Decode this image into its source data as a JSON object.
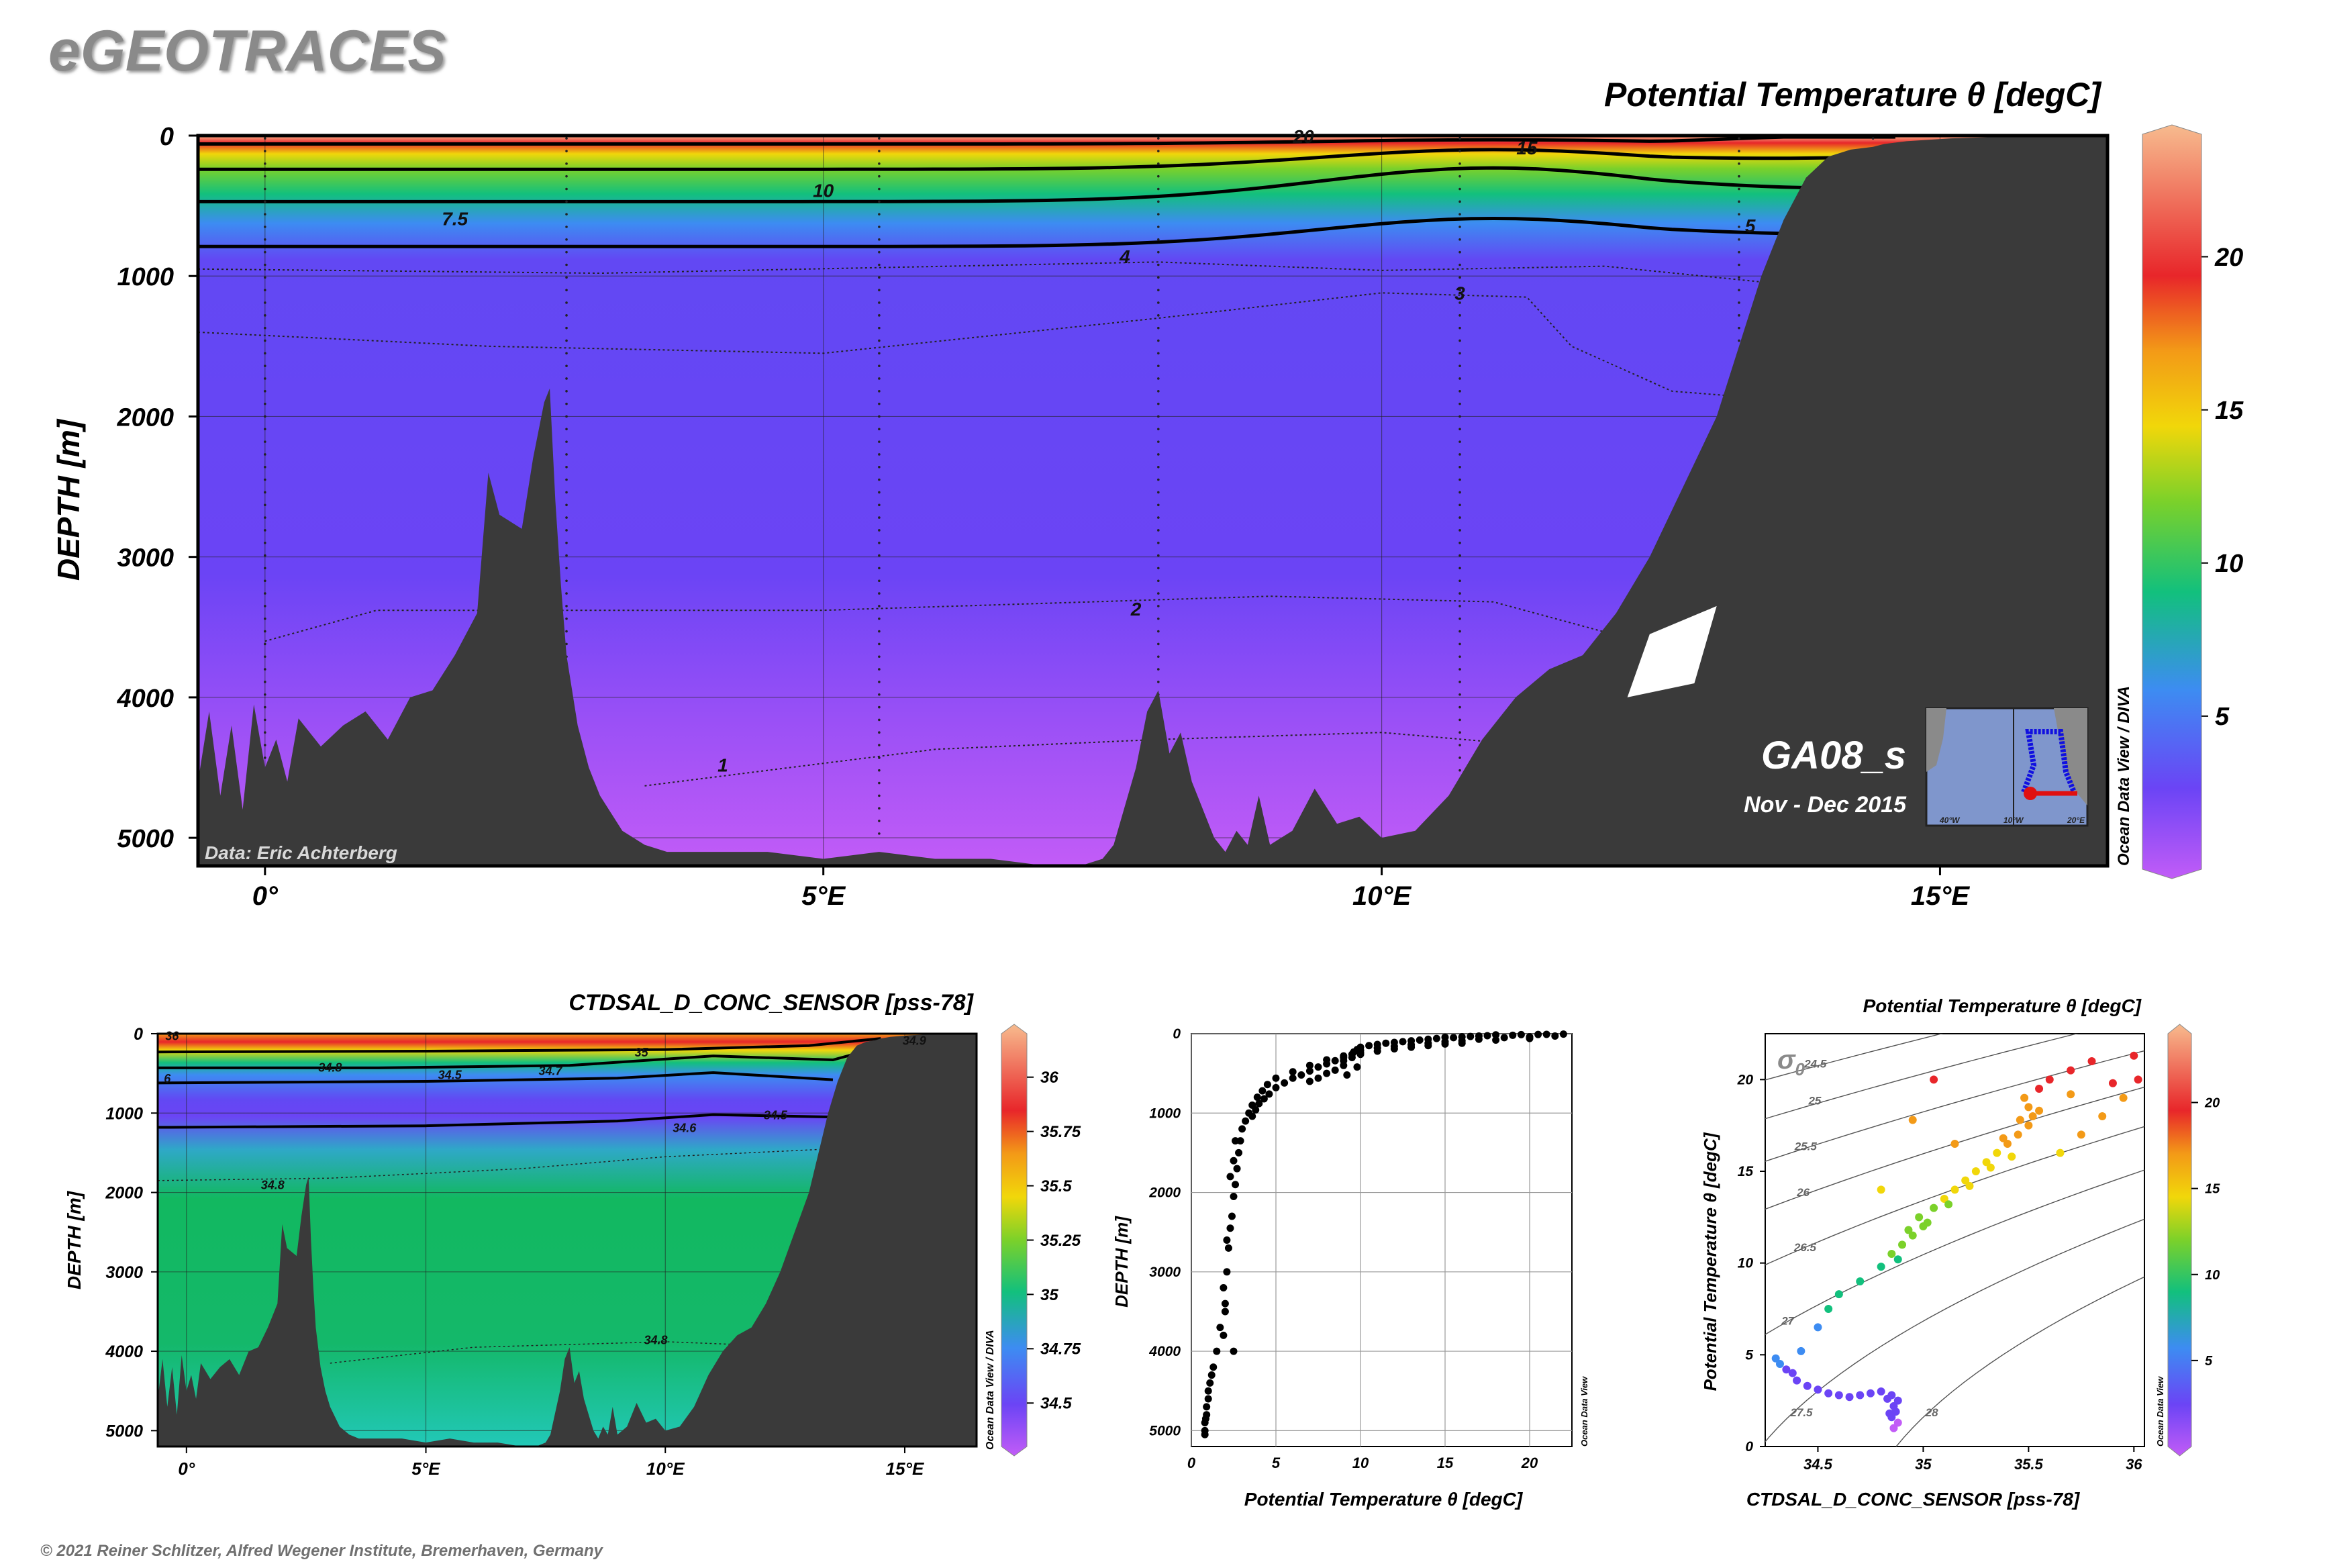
{
  "brand": "eGEOTRACES",
  "copyright": "© 2021 Reiner Schlitzer, Alfred Wegener Institute, Bremerhaven, Germany",
  "colors": {
    "seafloor": "#3a3a3a",
    "palette_temp": [
      "#c25cf7",
      "#6b44f5",
      "#3d8cf2",
      "#12c07d",
      "#7bd12a",
      "#f1d70a",
      "#f39a17",
      "#e8262a",
      "#f7bb8e"
    ],
    "palette_sal": [
      "#c25cf7",
      "#6b44f5",
      "#3d8cf2",
      "#12c07d",
      "#7bd12a",
      "#f1d70a",
      "#f39a17",
      "#e8262a",
      "#f7bb8e"
    ]
  },
  "main": {
    "title": "Potential Temperature θ [degC]",
    "ylabel": "DEPTH [m]",
    "credit": "Data: Eric Achterberg",
    "cruise": "GA08_s",
    "cruise_dates": "Nov - Dec 2015",
    "odv": "Ocean Data View / DIVA",
    "inset_labels": [
      "40°W",
      "10°W",
      "20°E"
    ]
  },
  "sal": {
    "title": "CTDSAL_D_CONC_SENSOR [pss-78]",
    "ylabel": "DEPTH [m]",
    "odv": "Ocean Data View / DIVA"
  },
  "profile": {
    "xlabel": "Potential Temperature θ [degC]",
    "ylabel": "DEPTH [m]",
    "odv": "Ocean Data View"
  },
  "ts": {
    "title": "Potential Temperature θ [degC]",
    "xlabel": "CTDSAL_D_CONC_SENSOR [pss-78]",
    "ylabel": "Potential Temperature θ [degC]",
    "sigma": "σ",
    "sigma_sub": "0",
    "odv": "Ocean Data View"
  },
  "chart_data": [
    {
      "id": "section-theta",
      "type": "heatmap",
      "title": "Potential Temperature θ [degC]",
      "ylabel": "DEPTH [m]",
      "xlim": [
        -0.6,
        16.5
      ],
      "ylim": [
        5200,
        0
      ],
      "xticks": [
        {
          "v": 0,
          "label": "0°"
        },
        {
          "v": 5,
          "label": "5°E"
        },
        {
          "v": 10,
          "label": "10°E"
        },
        {
          "v": 15,
          "label": "15°E"
        }
      ],
      "yticks": [
        0,
        1000,
        2000,
        3000,
        4000,
        5000
      ],
      "colorbar": {
        "min": 0,
        "max": 24,
        "ticks": [
          5,
          10,
          15,
          20
        ]
      },
      "contours": [
        {
          "level": "20",
          "at": [
            9.3,
            5
          ]
        },
        {
          "level": "15",
          "at": [
            11.3,
            85
          ]
        },
        {
          "level": "10",
          "at": [
            5.0,
            390
          ]
        },
        {
          "level": "7.5",
          "at": [
            1.7,
            590
          ]
        },
        {
          "level": "5",
          "at": [
            13.3,
            640
          ]
        },
        {
          "level": "4",
          "at": [
            7.7,
            860
          ]
        },
        {
          "level": "3",
          "at": [
            10.7,
            1120
          ]
        },
        {
          "level": "2",
          "at": [
            7.8,
            3370
          ]
        },
        {
          "level": "1",
          "at": [
            4.1,
            4480
          ]
        }
      ],
      "stations_lon": [
        0.0,
        2.7,
        5.5,
        8.0,
        10.7,
        13.2,
        14.4,
        15.5
      ],
      "bathymetry_lon": [
        -0.6,
        -0.5,
        -0.4,
        -0.3,
        -0.2,
        -0.1,
        0,
        0.1,
        0.2,
        0.3,
        0.5,
        0.7,
        0.9,
        1.1,
        1.3,
        1.5,
        1.7,
        1.9,
        2.0,
        2.1,
        2.2,
        2.3,
        2.4,
        2.5,
        2.55,
        2.6,
        2.65,
        2.7,
        2.8,
        2.9,
        3.0,
        3.2,
        3.4,
        3.6,
        3.8,
        4.0,
        4.5,
        5.0,
        5.5,
        6.0,
        6.5,
        7.0,
        7.3,
        7.5,
        7.6,
        7.8,
        7.9,
        8.0,
        8.1,
        8.2,
        8.3,
        8.4,
        8.5,
        8.6,
        8.7,
        8.8,
        8.9,
        9.0,
        9.2,
        9.4,
        9.6,
        9.8,
        10.0,
        10.3,
        10.6,
        10.9,
        11.2,
        11.5,
        11.8,
        12.1,
        12.4,
        12.7,
        13.0,
        13.2,
        13.4,
        13.6,
        13.8,
        14.0,
        14.2,
        14.4,
        14.5,
        14.7,
        14.9,
        15.1,
        15.3,
        15.5,
        15.7,
        15.9,
        16.1,
        16.3,
        16.5
      ],
      "bathymetry_depth": [
        4600,
        4100,
        4700,
        4200,
        4800,
        4050,
        4500,
        4300,
        4600,
        4150,
        4350,
        4200,
        4100,
        4300,
        4000,
        3950,
        3700,
        3400,
        2400,
        2700,
        2750,
        2800,
        2300,
        1900,
        1800,
        2600,
        3200,
        3700,
        4200,
        4500,
        4700,
        4950,
        5050,
        5100,
        5100,
        5100,
        5100,
        5150,
        5100,
        5150,
        5150,
        5200,
        5200,
        5150,
        5050,
        4500,
        4100,
        3950,
        4400,
        4250,
        4600,
        4800,
        5000,
        5100,
        4950,
        5050,
        4700,
        5050,
        4950,
        4650,
        4900,
        4850,
        5000,
        4950,
        4700,
        4300,
        4000,
        3800,
        3700,
        3400,
        3000,
        2500,
        2000,
        1500,
        1000,
        600,
        300,
        150,
        100,
        80,
        60,
        40,
        30,
        20,
        15,
        10,
        8,
        6,
        5,
        3,
        2
      ]
    },
    {
      "id": "section-salinity",
      "type": "heatmap",
      "title": "CTDSAL_D_CONC_SENSOR [pss-78]",
      "ylabel": "DEPTH [m]",
      "xlim": [
        -0.6,
        16.5
      ],
      "ylim": [
        5200,
        0
      ],
      "xticks": [
        {
          "v": 0,
          "label": "0°"
        },
        {
          "v": 5,
          "label": "5°E"
        },
        {
          "v": 10,
          "label": "10°E"
        },
        {
          "v": 15,
          "label": "15°E"
        }
      ],
      "yticks": [
        0,
        1000,
        2000,
        3000,
        4000,
        5000
      ],
      "colorbar": {
        "min": 34.3,
        "max": 36.2,
        "ticks": [
          "34.5",
          "34.75",
          "35",
          "35.25",
          "35.5",
          "35.75",
          "36"
        ]
      },
      "contours": [
        {
          "level": "36",
          "at": [
            -0.3,
            20
          ]
        },
        {
          "level": "35",
          "at": [
            9.5,
            230
          ]
        },
        {
          "level": "34.9",
          "at": [
            15.2,
            80
          ]
        },
        {
          "level": "34.8",
          "at": [
            3.0,
            420
          ]
        },
        {
          "level": "34.5",
          "at": [
            5.5,
            510
          ]
        },
        {
          "level": "34.7",
          "at": [
            7.6,
            460
          ]
        },
        {
          "level": "6",
          "at": [
            -0.4,
            560
          ]
        },
        {
          "level": "34.5",
          "at": [
            12.3,
            1020
          ]
        },
        {
          "level": "34.6",
          "at": [
            10.4,
            1180
          ]
        },
        {
          "level": "34.8",
          "at": [
            1.8,
            1900
          ]
        },
        {
          "level": "34.8",
          "at": [
            9.8,
            3850
          ]
        }
      ]
    },
    {
      "id": "profile",
      "type": "scatter",
      "xlabel": "Potential Temperature θ [degC]",
      "ylabel": "DEPTH [m]",
      "xlim": [
        0,
        22.5
      ],
      "ylim": [
        5200,
        0
      ],
      "xticks": [
        0,
        5,
        10,
        15,
        20
      ],
      "yticks": [
        0,
        1000,
        2000,
        3000,
        4000,
        5000
      ],
      "points": [
        [
          22,
          5
        ],
        [
          21,
          8
        ],
        [
          20.5,
          10
        ],
        [
          19.5,
          12
        ],
        [
          19,
          20
        ],
        [
          18,
          15
        ],
        [
          17.5,
          25
        ],
        [
          17,
          30
        ],
        [
          16.5,
          35
        ],
        [
          16,
          40
        ],
        [
          15.5,
          50
        ],
        [
          15,
          45
        ],
        [
          14.5,
          60
        ],
        [
          14,
          70
        ],
        [
          13.5,
          80
        ],
        [
          13,
          90
        ],
        [
          12.5,
          100
        ],
        [
          12,
          110
        ],
        [
          11.5,
          120
        ],
        [
          11,
          135
        ],
        [
          10.5,
          150
        ],
        [
          10,
          170
        ],
        [
          9.8,
          200
        ],
        [
          9.6,
          230
        ],
        [
          21.5,
          30
        ],
        [
          20,
          40
        ],
        [
          18.5,
          50
        ],
        [
          17,
          70
        ],
        [
          16,
          90
        ],
        [
          15,
          100
        ],
        [
          14,
          120
        ],
        [
          13,
          140
        ],
        [
          12,
          160
        ],
        [
          11,
          180
        ],
        [
          10,
          210
        ],
        [
          9.5,
          260
        ],
        [
          9,
          300
        ],
        [
          8.5,
          340
        ],
        [
          8,
          380
        ],
        [
          7.5,
          420
        ],
        [
          7,
          470
        ],
        [
          6.5,
          520
        ],
        [
          6,
          560
        ],
        [
          5.5,
          620
        ],
        [
          5,
          680
        ],
        [
          4.6,
          760
        ],
        [
          4.3,
          820
        ],
        [
          4.0,
          880
        ],
        [
          3.8,
          960
        ],
        [
          3.6,
          1040
        ],
        [
          20,
          60
        ],
        [
          18,
          80
        ],
        [
          16,
          120
        ],
        [
          14,
          150
        ],
        [
          12,
          190
        ],
        [
          10,
          240
        ],
        [
          9,
          280
        ],
        [
          8,
          330
        ],
        [
          7,
          400
        ],
        [
          6,
          480
        ],
        [
          5,
          560
        ],
        [
          4.5,
          640
        ],
        [
          4.2,
          720
        ],
        [
          3.9,
          800
        ],
        [
          3.6,
          900
        ],
        [
          3.4,
          1000
        ],
        [
          3.2,
          1100
        ],
        [
          15,
          130
        ],
        [
          13,
          170
        ],
        [
          11,
          220
        ],
        [
          10,
          260
        ],
        [
          9.5,
          300
        ],
        [
          9,
          340
        ],
        [
          9,
          400
        ],
        [
          9.8,
          420
        ],
        [
          8.5,
          460
        ],
        [
          8,
          500
        ],
        [
          9.2,
          520
        ],
        [
          7.5,
          560
        ],
        [
          7,
          600
        ],
        [
          3.0,
          1200
        ],
        [
          2.9,
          1350
        ],
        [
          2.8,
          1500
        ],
        [
          2.7,
          1700
        ],
        [
          2.6,
          1900
        ],
        [
          2.5,
          2050
        ],
        [
          2.4,
          2300
        ],
        [
          2.3,
          2450
        ],
        [
          2.2,
          2700
        ],
        [
          2.1,
          3000
        ],
        [
          2.0,
          3400
        ],
        [
          2.0,
          3500
        ],
        [
          1.9,
          3800
        ],
        [
          1.5,
          4000
        ],
        [
          2.5,
          4000
        ],
        [
          1.2,
          4300
        ],
        [
          1.1,
          4400
        ],
        [
          1.0,
          4500
        ],
        [
          1.0,
          4600
        ],
        [
          0.9,
          4700
        ],
        [
          0.9,
          4800
        ],
        [
          0.8,
          4900
        ],
        [
          0.8,
          5000
        ],
        [
          0.8,
          5050
        ],
        [
          2.6,
          1350
        ],
        [
          2.5,
          1600
        ],
        [
          2.3,
          1800
        ],
        [
          2.1,
          2600
        ],
        [
          1.9,
          3200
        ],
        [
          1.7,
          3700
        ],
        [
          1.3,
          4200
        ],
        [
          0.85,
          4850
        ]
      ]
    },
    {
      "id": "ts-diagram",
      "type": "scatter",
      "title": "Potential Temperature θ [degC]",
      "xlabel": "CTDSAL_D_CONC_SENSOR [pss-78]",
      "ylabel": "Potential Temperature θ [degC]",
      "xlim": [
        34.25,
        36.05
      ],
      "ylim": [
        0,
        22.5
      ],
      "xticks": [
        "34.5",
        "35",
        "35.5",
        "36"
      ],
      "yticks": [
        "0",
        "5",
        "10",
        "15",
        "20"
      ],
      "colorbar": {
        "min": 0,
        "max": 24,
        "ticks": [
          5,
          10,
          15,
          20
        ]
      },
      "isopycnals": [
        "24.5",
        "25",
        "25.5",
        "26",
        "26.5",
        "27",
        "27.5",
        "28"
      ],
      "points": [
        [
          34.3,
          4.8
        ],
        [
          34.32,
          4.5
        ],
        [
          34.35,
          4.2
        ],
        [
          34.38,
          4.0
        ],
        [
          34.4,
          3.6
        ],
        [
          34.45,
          3.3
        ],
        [
          34.5,
          3.1
        ],
        [
          34.55,
          2.9
        ],
        [
          34.6,
          2.8
        ],
        [
          34.65,
          2.7
        ],
        [
          34.7,
          2.8
        ],
        [
          34.75,
          2.9
        ],
        [
          34.8,
          3.0
        ],
        [
          34.85,
          2.8
        ],
        [
          34.88,
          2.5
        ],
        [
          34.86,
          2.2
        ],
        [
          34.87,
          1.9
        ],
        [
          34.85,
          1.6
        ],
        [
          34.88,
          1.3
        ],
        [
          34.86,
          1.0
        ],
        [
          34.84,
          1.8
        ],
        [
          34.83,
          2.6
        ],
        [
          34.42,
          5.2
        ],
        [
          34.5,
          6.5
        ],
        [
          34.55,
          7.5
        ],
        [
          34.6,
          8.3
        ],
        [
          34.7,
          9.0
        ],
        [
          34.8,
          9.8
        ],
        [
          34.85,
          10.5
        ],
        [
          34.9,
          11.0
        ],
        [
          34.95,
          11.5
        ],
        [
          35.0,
          12.0
        ],
        [
          34.98,
          12.5
        ],
        [
          35.05,
          13.0
        ],
        [
          35.1,
          13.5
        ],
        [
          35.15,
          14.0
        ],
        [
          35.2,
          14.5
        ],
        [
          35.25,
          15.0
        ],
        [
          35.3,
          15.5
        ],
        [
          35.35,
          16.0
        ],
        [
          35.4,
          16.5
        ],
        [
          35.45,
          17.0
        ],
        [
          35.5,
          17.5
        ],
        [
          35.52,
          18.0
        ],
        [
          35.5,
          18.5
        ],
        [
          35.48,
          19.0
        ],
        [
          35.55,
          19.5
        ],
        [
          35.6,
          20.0
        ],
        [
          35.7,
          20.5
        ],
        [
          35.8,
          21.0
        ],
        [
          36.0,
          21.3
        ],
        [
          34.88,
          10.2
        ],
        [
          34.93,
          11.8
        ],
        [
          35.02,
          12.2
        ],
        [
          35.12,
          13.2
        ],
        [
          35.22,
          14.2
        ],
        [
          35.32,
          15.2
        ],
        [
          35.42,
          15.8
        ],
        [
          35.38,
          16.8
        ],
        [
          35.46,
          17.8
        ],
        [
          35.55,
          18.3
        ],
        [
          35.65,
          16.0
        ],
        [
          35.75,
          17.0
        ],
        [
          35.85,
          18.0
        ],
        [
          35.95,
          19.0
        ],
        [
          36.02,
          20.0
        ],
        [
          35.7,
          19.2
        ],
        [
          35.9,
          19.8
        ],
        [
          34.8,
          14.0
        ],
        [
          34.95,
          17.8
        ],
        [
          35.05,
          20.0
        ],
        [
          35.15,
          16.5
        ]
      ]
    }
  ]
}
